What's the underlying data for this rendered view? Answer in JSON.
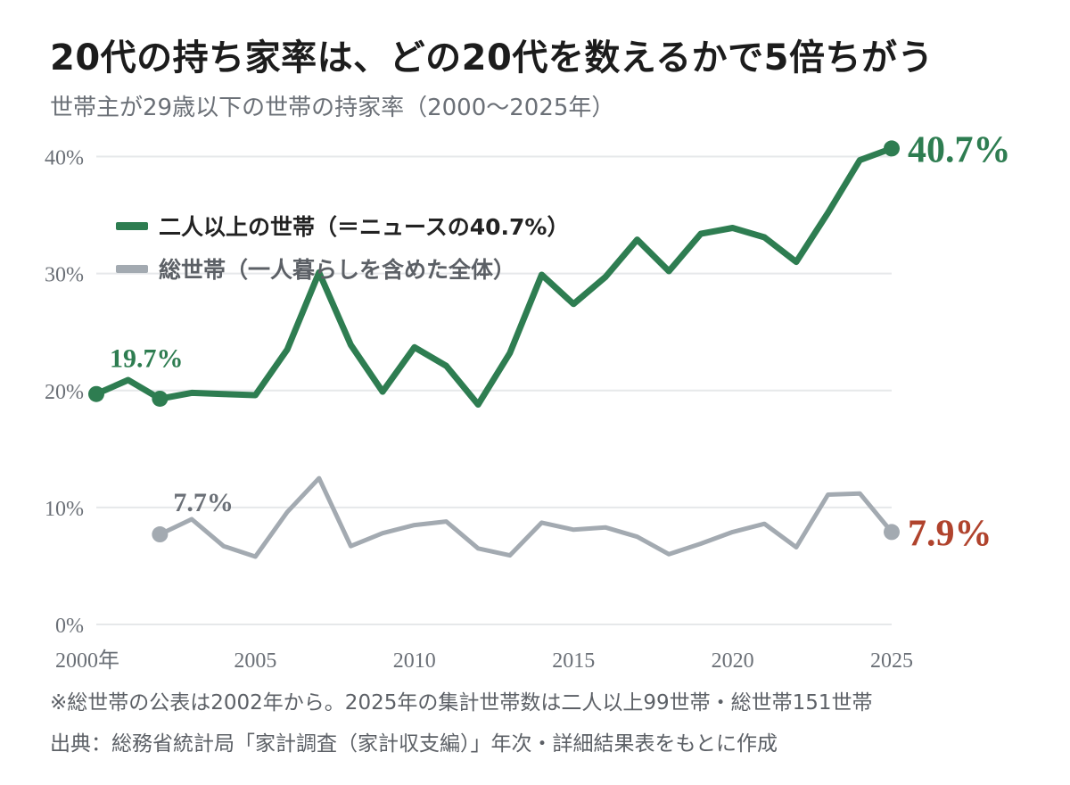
{
  "title": "20代の持ち家率は、どの20代を数えるかで5倍ちがう",
  "subtitle": "世帯主が29歳以下の世帯の持家率（2000～2025年）",
  "footnote": "※総世帯の公表は2002年から。2025年の集計世帯数は二人以上99世帯・総世帯151世帯",
  "source": "出典：総務省統計局「家計調査（家計収支編）」年次・詳細結果表をもとに作成",
  "colors": {
    "green": "#2e7d51",
    "gray": "#a3aab1",
    "red": "#b0432d",
    "grid": "#e6e8ea",
    "axis": "#6b7077"
  },
  "chart_data": {
    "type": "line",
    "x": [
      2000,
      2001,
      2002,
      2003,
      2004,
      2005,
      2006,
      2007,
      2008,
      2009,
      2010,
      2011,
      2012,
      2013,
      2014,
      2015,
      2016,
      2017,
      2018,
      2019,
      2020,
      2021,
      2022,
      2023,
      2024,
      2025
    ],
    "ylim": [
      0,
      45
    ],
    "grid": true,
    "legend_position": "top-left",
    "y_ticks": [
      "0%",
      "10%",
      "20%",
      "30%",
      "40%"
    ],
    "x_ticks": [
      {
        "value": 2000,
        "label": "2000年"
      },
      {
        "value": 2005,
        "label": "2005"
      },
      {
        "value": 2010,
        "label": "2010"
      },
      {
        "value": 2015,
        "label": "2015"
      },
      {
        "value": 2020,
        "label": "2020"
      },
      {
        "value": 2025,
        "label": "2025"
      }
    ],
    "series": [
      {
        "name": "二人以上の世帯（＝ニュースの40.7%）",
        "color": "#2e7d51",
        "values": [
          19.7,
          20.9,
          19.3,
          19.8,
          19.7,
          19.6,
          23.5,
          30.1,
          23.9,
          19.9,
          23.7,
          22.1,
          18.8,
          23.2,
          29.9,
          27.4,
          29.7,
          32.9,
          30.2,
          33.4,
          33.9,
          33.1,
          31.0,
          35.2,
          39.7,
          40.7
        ]
      },
      {
        "name": "総世帯（一人暮らしを含めた全体）",
        "color": "#a3aab1",
        "values": [
          null,
          null,
          7.7,
          9.0,
          6.7,
          5.8,
          9.6,
          12.5,
          6.7,
          7.8,
          8.5,
          8.8,
          6.5,
          5.9,
          8.7,
          8.1,
          8.3,
          7.5,
          6.0,
          6.9,
          7.9,
          8.6,
          6.6,
          11.1,
          11.2,
          7.9
        ]
      }
    ],
    "annotations": [
      {
        "label": "19.7%",
        "x": 2000,
        "y": 19.7,
        "series": 0
      },
      {
        "label": "7.7%",
        "x": 2002,
        "y": 7.7,
        "series": 1
      },
      {
        "label": "40.7%",
        "x": 2025,
        "y": 40.7,
        "series": 0
      },
      {
        "label": "7.9%",
        "x": 2025,
        "y": 7.9,
        "series": 1
      }
    ],
    "markers": [
      {
        "x": 2000,
        "series": 0
      },
      {
        "x": 2002,
        "series": 0
      },
      {
        "x": 2025,
        "series": 0
      },
      {
        "x": 2002,
        "series": 1
      },
      {
        "x": 2025,
        "series": 1
      }
    ]
  }
}
